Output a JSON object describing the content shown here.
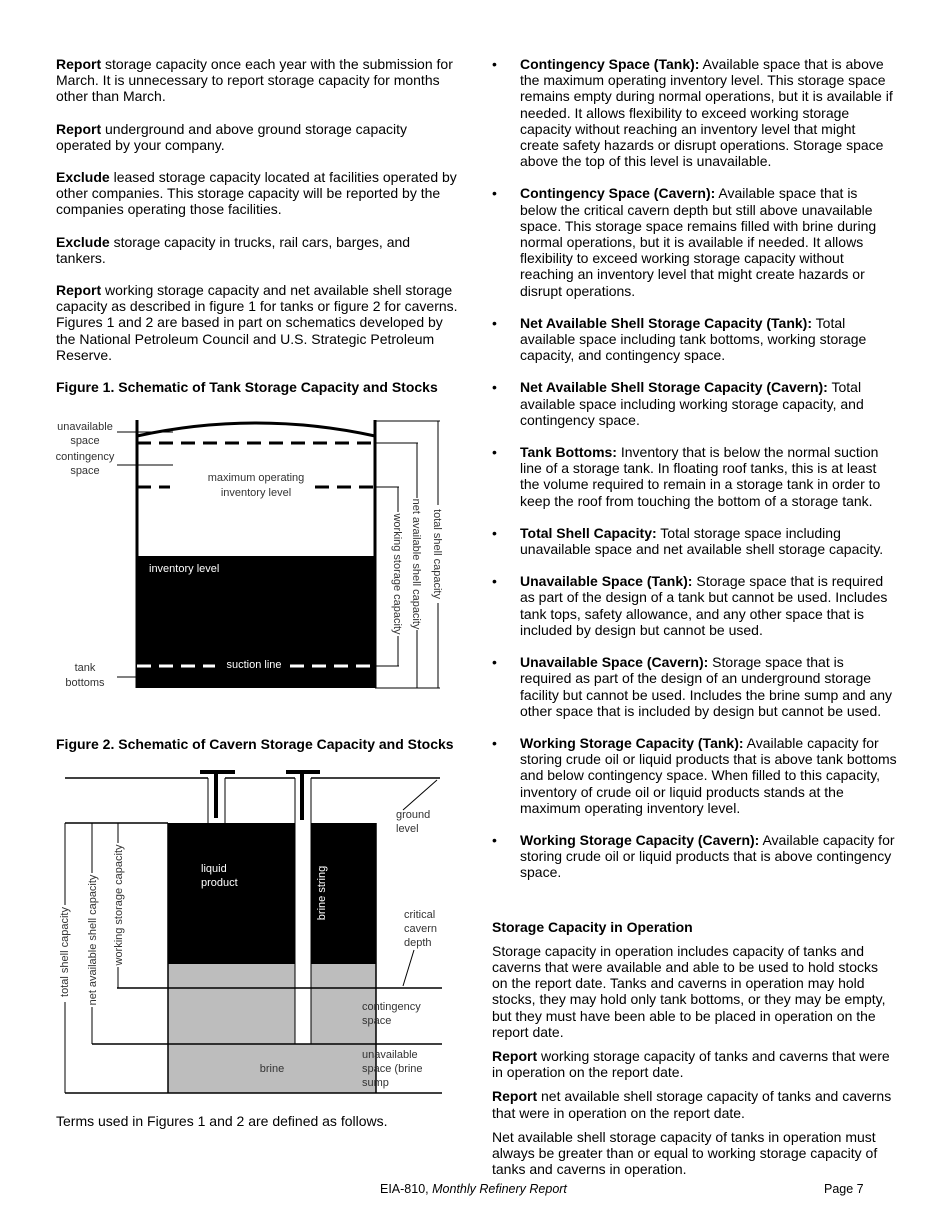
{
  "left": {
    "paras": [
      {
        "bold": "Report",
        "text": " storage capacity once each year with the submission for March. It is unnecessary to report storage capacity for months other than March."
      },
      {
        "bold": "Report",
        "text": " underground and above ground storage capacity operated by your company."
      },
      {
        "bold": "Exclude",
        "text": " leased storage capacity located at facilities operated by other companies. This storage capacity will be reported by the companies operating those facilities."
      },
      {
        "bold": "Exclude",
        "text": " storage capacity in trucks, rail cars, barges, and tankers."
      },
      {
        "bold": "Report",
        "text": " working storage capacity and net available shell storage capacity as described in figure 1 for tanks or figure 2 for caverns. Figures 1 and 2 are based in part on schematics developed by the National Petroleum Council and U.S. Strategic Petroleum Reserve."
      }
    ],
    "fig1_caption": "Figure 1. Schematic of Tank Storage Capacity and Stocks",
    "fig2_caption": "Figure 2. Schematic of Cavern Storage Capacity and Stocks",
    "terms_note": "Terms used in Figures 1 and 2 are defined as follows."
  },
  "fig1": {
    "unavailable": [
      "unavailable",
      "space"
    ],
    "contingency": [
      "contingency",
      "space"
    ],
    "max_op": [
      "maximum operating",
      "inventory level"
    ],
    "inventory": "inventory level",
    "suction": "suction line",
    "tank_bottoms": [
      "tank",
      "bottoms"
    ],
    "working": "working storage capacity",
    "net": "net available shell capacity",
    "total": "total shell capacity"
  },
  "fig2": {
    "ground": [
      "ground",
      "level"
    ],
    "liquid": [
      "liquid",
      "product"
    ],
    "brine_string": "brine string",
    "critical": [
      "critical",
      "cavern",
      "depth"
    ],
    "contingency": [
      "contingency",
      "space"
    ],
    "unavailable": [
      "unavailable",
      "space (brine",
      "sump"
    ],
    "brine": "brine",
    "total": "total shell capacity",
    "net": "net available shell capacity",
    "working": "working storage capacity"
  },
  "right": {
    "bullet": "•",
    "definitions": [
      {
        "term": "Contingency Space (Tank):",
        "text": "  Available space that is above the maximum operating inventory level. This storage space remains empty during normal operations, but it is available if needed. It allows flexibility to exceed working storage capacity without reaching an inventory level that might create safety hazards or disrupt operations. Storage space above the top of this level is unavailable."
      },
      {
        "term": "Contingency Space (Cavern):",
        "text": "  Available space that is below the critical cavern depth but still above unavailable space. This storage space remains filled with brine during normal operations, but it is available if needed. It allows flexibility to exceed working storage capacity without reaching an inventory level that might create hazards or disrupt operations."
      },
      {
        "term": "Net Available Shell Storage Capacity (Tank):",
        "text": "  Total available space including tank bottoms, working storage capacity, and contingency space."
      },
      {
        "term": "Net Available Shell Storage Capacity (Cavern):",
        "text": "  Total available space including working storage capacity, and contingency space."
      },
      {
        "term": "Tank Bottoms:",
        "text": "  Inventory that is below the normal suction line of a storage tank. In floating roof tanks, this is at least the volume required to remain in a storage tank in order to keep the roof from touching the bottom of a storage tank."
      },
      {
        "term": "Total Shell Capacity:",
        "text": "  Total storage space including unavailable space and net available shell storage capacity."
      },
      {
        "term": "Unavailable Space (Tank):",
        "text": "  Storage space that is required as part of the design of a tank but cannot be used. Includes tank tops, safety allowance, and any other space that is included by design but cannot be used."
      },
      {
        "term": "Unavailable Space (Cavern):",
        "text": "  Storage space that is required as part of the design of an underground storage facility but cannot be used. Includes the brine sump and any other space that is included by design but cannot be used."
      },
      {
        "term": "Working Storage Capacity (Tank):",
        "text": "  Available capacity for storing crude oil or liquid products that is above tank bottoms and below contingency space. When filled to this capacity, inventory of crude oil or liquid products stands at the maximum operating inventory level."
      },
      {
        "term": "Working Storage Capacity (Cavern):",
        "text": "  Available capacity for storing crude oil or liquid products that is above contingency space."
      }
    ],
    "section_title": "Storage Capacity in Operation",
    "section_intro": "Storage capacity in operation includes capacity of tanks and caverns that were available and able to be used to hold stocks on the report date. Tanks and caverns in operation may hold stocks, they may hold only tank bottoms, or they may be empty, but they must have been able to be placed in operation on the report date.",
    "paras": [
      {
        "bold": "Report",
        "text": " working storage capacity of tanks and caverns that were in operation on the report date."
      },
      {
        "bold": "Report",
        "text": " net available shell storage capacity of tanks and caverns that were in operation on the report date."
      },
      {
        "bold": "",
        "text": "Net available shell storage capacity of tanks in operation must always be greater than or equal to working storage capacity of tanks and caverns in operation."
      }
    ]
  },
  "footer": {
    "form": "EIA-810, ",
    "title": "Monthly Refinery Report",
    "page": "Page 7"
  }
}
